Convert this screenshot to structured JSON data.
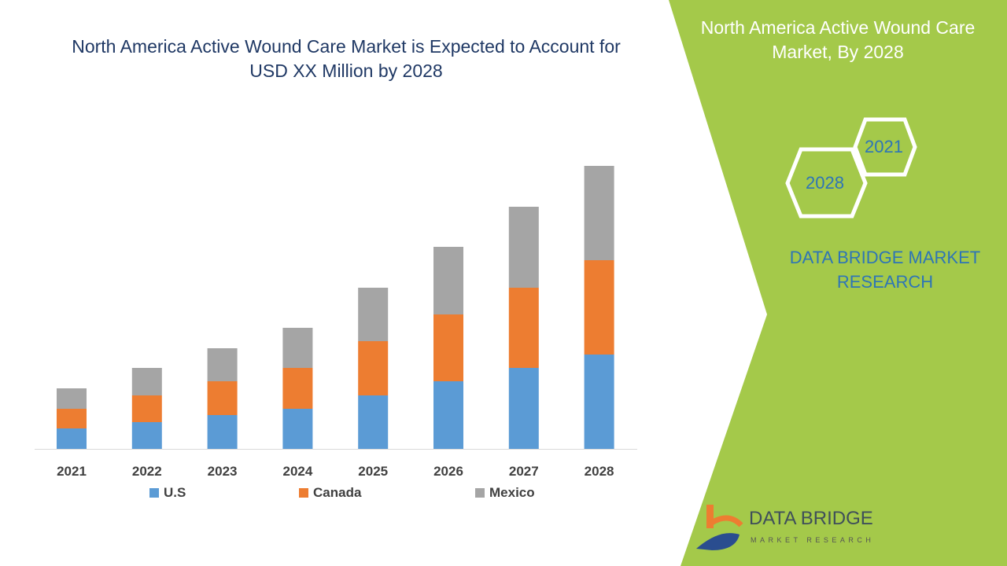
{
  "title": "North America Active Wound Care Market is Expected to Account for USD XX Million by 2028",
  "side_panel": {
    "title": "North America Active Wound Care Market, By 2028",
    "hex_labels": [
      "2021",
      "2028"
    ],
    "brand_text": "DATA BRIDGE MARKET RESEARCH",
    "logo_text": "DATA BRIDGE",
    "logo_subtext": "MARKET RESEARCH"
  },
  "watermark": "DATA BRIDGE MARKET RESEARCH",
  "colors": {
    "us": "#5b9bd5",
    "canada": "#ed7d31",
    "mexico": "#a5a5a5",
    "panel": "#a4c94a",
    "title": "#1f3864"
  },
  "chart_data": {
    "type": "bar",
    "stacked": true,
    "title": "North America Active Wound Care Market is Expected to Account for USD XX Million by 2028",
    "categories": [
      "2021",
      "2022",
      "2023",
      "2024",
      "2025",
      "2026",
      "2027",
      "2028"
    ],
    "series": [
      {
        "name": "U.S",
        "values": [
          26,
          34,
          43,
          51,
          68,
          86,
          103,
          120
        ]
      },
      {
        "name": "Canada",
        "values": [
          25,
          34,
          43,
          52,
          69,
          85,
          102,
          120
        ]
      },
      {
        "name": "Mexico",
        "values": [
          26,
          35,
          42,
          51,
          68,
          86,
          103,
          120
        ]
      }
    ],
    "units": "relative (no value axis shown)",
    "legend": "bottom",
    "grid": false
  }
}
